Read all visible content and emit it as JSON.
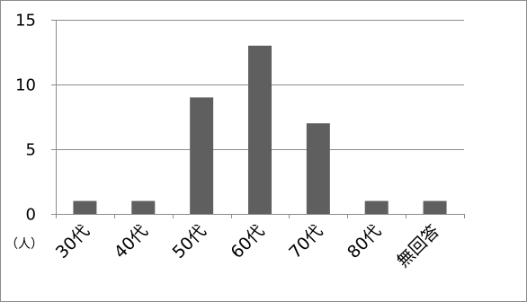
{
  "chart_data": {
    "type": "bar",
    "categories": [
      "30代",
      "40代",
      "50代",
      "60代",
      "70代",
      "80代",
      "無回答"
    ],
    "values": [
      1,
      1,
      9,
      13,
      7,
      1,
      1
    ],
    "title": "",
    "xlabel": "",
    "ylabel": "",
    "unit_label": "（人）",
    "ylim": [
      0,
      15
    ],
    "yticks": [
      0,
      5,
      10,
      15
    ],
    "grid": true,
    "bar_color": "#5f5f5f",
    "grid_color": "#8c8c8c"
  }
}
